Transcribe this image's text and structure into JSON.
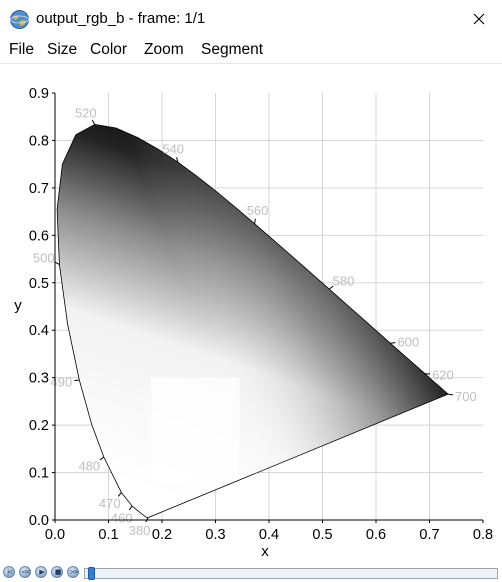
{
  "window": {
    "title": "output_rgb_b - frame: 1/1",
    "icon": "app-globe-icon",
    "close_icon": "close-icon"
  },
  "menu": {
    "items": [
      "File",
      "Size",
      "Color",
      "Zoom",
      "Segment"
    ]
  },
  "chart_data": {
    "type": "scatter",
    "description_free": true,
    "xlabel": "x",
    "ylabel": "y",
    "xlim": [
      0.0,
      0.8
    ],
    "ylim": [
      0.0,
      0.9
    ],
    "x_ticks": [
      "0.0",
      "0.1",
      "0.2",
      "0.3",
      "0.4",
      "0.5",
      "0.6",
      "0.7",
      "0.8"
    ],
    "y_ticks": [
      "0.0",
      "0.1",
      "0.2",
      "0.3",
      "0.4",
      "0.5",
      "0.6",
      "0.7",
      "0.8",
      "0.9"
    ],
    "grid": true,
    "wavelength_labels": [
      {
        "label": "380",
        "x": 0.1741,
        "y": 0.005
      },
      {
        "label": "460",
        "x": 0.144,
        "y": 0.0297
      },
      {
        "label": "470",
        "x": 0.1241,
        "y": 0.0578
      },
      {
        "label": "480",
        "x": 0.0913,
        "y": 0.1327
      },
      {
        "label": "490",
        "x": 0.0454,
        "y": 0.295
      },
      {
        "label": "500",
        "x": 0.0082,
        "y": 0.5384
      },
      {
        "label": "520",
        "x": 0.0743,
        "y": 0.8338
      },
      {
        "label": "540",
        "x": 0.2296,
        "y": 0.7543
      },
      {
        "label": "560",
        "x": 0.3731,
        "y": 0.6245
      },
      {
        "label": "580",
        "x": 0.5125,
        "y": 0.4866
      },
      {
        "label": "600",
        "x": 0.627,
        "y": 0.3725
      },
      {
        "label": "620",
        "x": 0.6915,
        "y": 0.3083
      },
      {
        "label": "700",
        "x": 0.7347,
        "y": 0.2653
      }
    ],
    "locus": [
      [
        0.1741,
        0.005
      ],
      [
        0.1738,
        0.0049
      ],
      [
        0.1733,
        0.0048
      ],
      [
        0.1726,
        0.0048
      ],
      [
        0.1714,
        0.0051
      ],
      [
        0.1689,
        0.0069
      ],
      [
        0.1644,
        0.0109
      ],
      [
        0.1566,
        0.0177
      ],
      [
        0.144,
        0.0297
      ],
      [
        0.1241,
        0.0578
      ],
      [
        0.0913,
        0.1327
      ],
      [
        0.0687,
        0.2007
      ],
      [
        0.0454,
        0.295
      ],
      [
        0.0235,
        0.4127
      ],
      [
        0.0082,
        0.5384
      ],
      [
        0.0039,
        0.6548
      ],
      [
        0.0139,
        0.7502
      ],
      [
        0.0389,
        0.812
      ],
      [
        0.0743,
        0.8338
      ],
      [
        0.1142,
        0.8262
      ],
      [
        0.1547,
        0.8059
      ],
      [
        0.1929,
        0.7816
      ],
      [
        0.2296,
        0.7543
      ],
      [
        0.2658,
        0.7243
      ],
      [
        0.3016,
        0.6923
      ],
      [
        0.3373,
        0.6589
      ],
      [
        0.3731,
        0.6245
      ],
      [
        0.4087,
        0.5896
      ],
      [
        0.4441,
        0.5547
      ],
      [
        0.4788,
        0.5202
      ],
      [
        0.5125,
        0.4866
      ],
      [
        0.5448,
        0.4544
      ],
      [
        0.5752,
        0.4242
      ],
      [
        0.6029,
        0.3965
      ],
      [
        0.627,
        0.3725
      ],
      [
        0.6482,
        0.3514
      ],
      [
        0.6658,
        0.334
      ],
      [
        0.6801,
        0.3197
      ],
      [
        0.6915,
        0.3083
      ],
      [
        0.7006,
        0.2993
      ],
      [
        0.7079,
        0.292
      ],
      [
        0.714,
        0.2859
      ],
      [
        0.719,
        0.2809
      ],
      [
        0.723,
        0.277
      ],
      [
        0.726,
        0.274
      ],
      [
        0.7283,
        0.2717
      ],
      [
        0.73,
        0.27
      ],
      [
        0.7311,
        0.2689
      ],
      [
        0.732,
        0.268
      ],
      [
        0.7327,
        0.2673
      ],
      [
        0.7334,
        0.2666
      ],
      [
        0.734,
        0.266
      ],
      [
        0.7344,
        0.2656
      ],
      [
        0.7346,
        0.2654
      ],
      [
        0.7347,
        0.2653
      ]
    ],
    "colors": {
      "axis": "#000000",
      "grid": "#d6d6d6",
      "wavelength_text": "#bfbfbf"
    }
  },
  "status": {
    "nav_buttons": [
      "first-frame-icon",
      "prev-frame-icon",
      "play-icon",
      "stop-icon",
      "last-frame-icon"
    ],
    "slider_value": 0
  }
}
